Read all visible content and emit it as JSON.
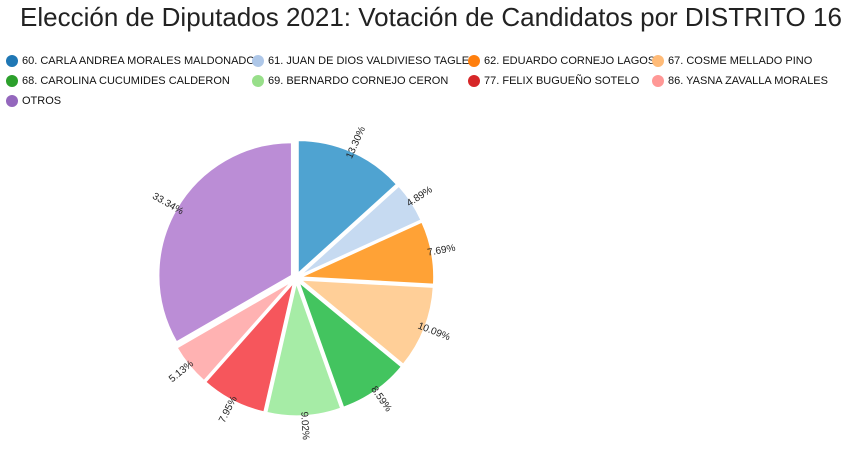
{
  "chart_data": {
    "type": "pie",
    "title": "Elección de Diputados 2021: Votación de Candidatos por DISTRITO 16",
    "slices": [
      {
        "name": "60. CARLA ANDREA MORALES MALDONADO",
        "value": 13.3,
        "label": "13.30%",
        "color": "#1f77b4",
        "fill": "#4fa3d1"
      },
      {
        "name": "61. JUAN DE DIOS VALDIVIESO TAGLE",
        "value": 4.89,
        "label": "4.89%",
        "color": "#aec7e8",
        "fill": "#c6daf1"
      },
      {
        "name": "62. EDUARDO CORNEJO LAGOS",
        "value": 7.69,
        "label": "7.69%",
        "color": "#ff7f0e",
        "fill": "#ffa236"
      },
      {
        "name": "67. COSME MELLADO PINO",
        "value": 10.09,
        "label": "10.09%",
        "color": "#ffbb78",
        "fill": "#ffcf98"
      },
      {
        "name": "68. CAROLINA CUCUMIDES CALDERON",
        "value": 8.59,
        "label": "8.59%",
        "color": "#2ca02c",
        "fill": "#43c45f"
      },
      {
        "name": "69. BERNARDO CORNEJO CERON",
        "value": 9.02,
        "label": "9.02%",
        "color": "#98df8a",
        "fill": "#a6eca6"
      },
      {
        "name": "77. FELIX BUGUEÑO SOTELO",
        "value": 7.95,
        "label": "7.95%",
        "color": "#d62728",
        "fill": "#f6565c"
      },
      {
        "name": "86. YASNA ZAVALLA MORALES",
        "value": 5.13,
        "label": "5.13%",
        "color": "#ff9896",
        "fill": "#ffb2b2"
      },
      {
        "name": "OTROS",
        "value": 33.34,
        "label": "33.34%",
        "color": "#9467bd",
        "fill": "#bb8dd6"
      }
    ]
  }
}
